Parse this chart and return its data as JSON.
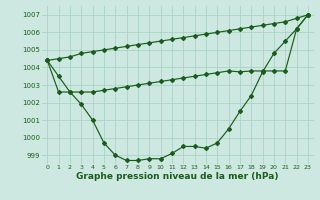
{
  "background_color": "#cce8e0",
  "grid_color": "#a8d4c8",
  "line_color": "#1a5c1a",
  "xlabel": "Graphe pression niveau de la mer (hPa)",
  "xlabel_fontsize": 6.5,
  "ylim": [
    998.5,
    1007.5
  ],
  "xlim": [
    -0.5,
    23.5
  ],
  "yticks": [
    999,
    1000,
    1001,
    1002,
    1003,
    1004,
    1005,
    1006,
    1007
  ],
  "xticks": [
    0,
    1,
    2,
    3,
    4,
    5,
    6,
    7,
    8,
    9,
    10,
    11,
    12,
    13,
    14,
    15,
    16,
    17,
    18,
    19,
    20,
    21,
    22,
    23
  ],
  "line_straight": [
    1004.4,
    1004.5,
    1004.6,
    1004.8,
    1004.9,
    1005.0,
    1005.1,
    1005.2,
    1005.3,
    1005.4,
    1005.5,
    1005.6,
    1005.7,
    1005.8,
    1005.9,
    1006.0,
    1006.1,
    1006.2,
    1006.3,
    1006.4,
    1006.5,
    1006.6,
    1006.8,
    1007.0
  ],
  "line_flat": [
    1004.4,
    1002.6,
    1002.6,
    1002.6,
    1002.6,
    1002.7,
    1002.8,
    1002.9,
    1003.0,
    1003.1,
    1003.2,
    1003.3,
    1003.4,
    1003.5,
    1003.6,
    1003.7,
    1003.8,
    1003.75,
    1003.8,
    1003.8,
    1003.8,
    1003.8,
    1006.2,
    1007.0
  ],
  "line_ucurve": [
    1004.4,
    1003.5,
    1002.6,
    1001.9,
    1001.0,
    999.7,
    999.0,
    998.7,
    998.7,
    998.8,
    998.8,
    999.1,
    999.5,
    999.5,
    999.4,
    999.7,
    1000.5,
    1001.5,
    1002.4,
    1003.75,
    1004.8,
    1005.5,
    1006.2,
    1007.0
  ]
}
